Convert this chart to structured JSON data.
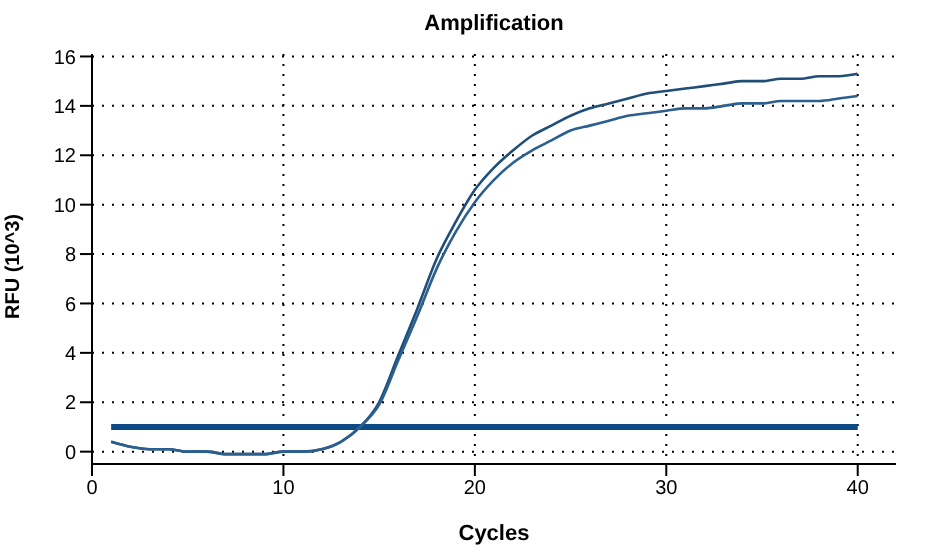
{
  "chart_data": {
    "type": "line",
    "title": "Amplification",
    "xlabel": "Cycles",
    "ylabel": "RFU (10^3)",
    "x": [
      1,
      2,
      3,
      4,
      5,
      6,
      7,
      8,
      9,
      10,
      11,
      12,
      13,
      14,
      15,
      16,
      17,
      18,
      19,
      20,
      21,
      22,
      23,
      24,
      25,
      26,
      27,
      28,
      29,
      30,
      31,
      32,
      33,
      34,
      35,
      36,
      37,
      38,
      39,
      40
    ],
    "series": [
      {
        "color": "#1f4e79",
        "values": [
          0.4,
          0.2,
          0.1,
          0.1,
          0,
          0,
          -0.1,
          -0.1,
          -0.1,
          0,
          0,
          0.1,
          0.4,
          1.0,
          2.0,
          3.9,
          5.8,
          7.8,
          9.3,
          10.6,
          11.5,
          12.2,
          12.8,
          13.2,
          13.6,
          13.9,
          14.1,
          14.3,
          14.5,
          14.6,
          14.7,
          14.8,
          14.9,
          15.0,
          15.0,
          15.1,
          15.1,
          15.2,
          15.2,
          15.3
        ]
      },
      {
        "color": "#2b5f8f",
        "values": [
          0.4,
          0.2,
          0.1,
          0.1,
          0,
          0,
          -0.1,
          -0.1,
          -0.1,
          0,
          0,
          0.1,
          0.4,
          1.0,
          1.9,
          3.7,
          5.5,
          7.4,
          8.9,
          10.1,
          11.0,
          11.7,
          12.2,
          12.6,
          13.0,
          13.2,
          13.4,
          13.6,
          13.7,
          13.8,
          13.9,
          13.9,
          14.0,
          14.1,
          14.1,
          14.2,
          14.2,
          14.2,
          14.3,
          14.4
        ]
      }
    ],
    "ref_lines": [
      {
        "axis": "y",
        "value": 1,
        "color": "#0b4a84"
      }
    ],
    "xlim": [
      0,
      42
    ],
    "xticks": [
      0,
      10,
      20,
      30,
      40
    ],
    "ylim": [
      -0.5,
      16.1
    ],
    "yticks": [
      0,
      2,
      4,
      6,
      8,
      10,
      12,
      14,
      16
    ],
    "grid": true,
    "line_style": "solid",
    "marker": "none"
  }
}
